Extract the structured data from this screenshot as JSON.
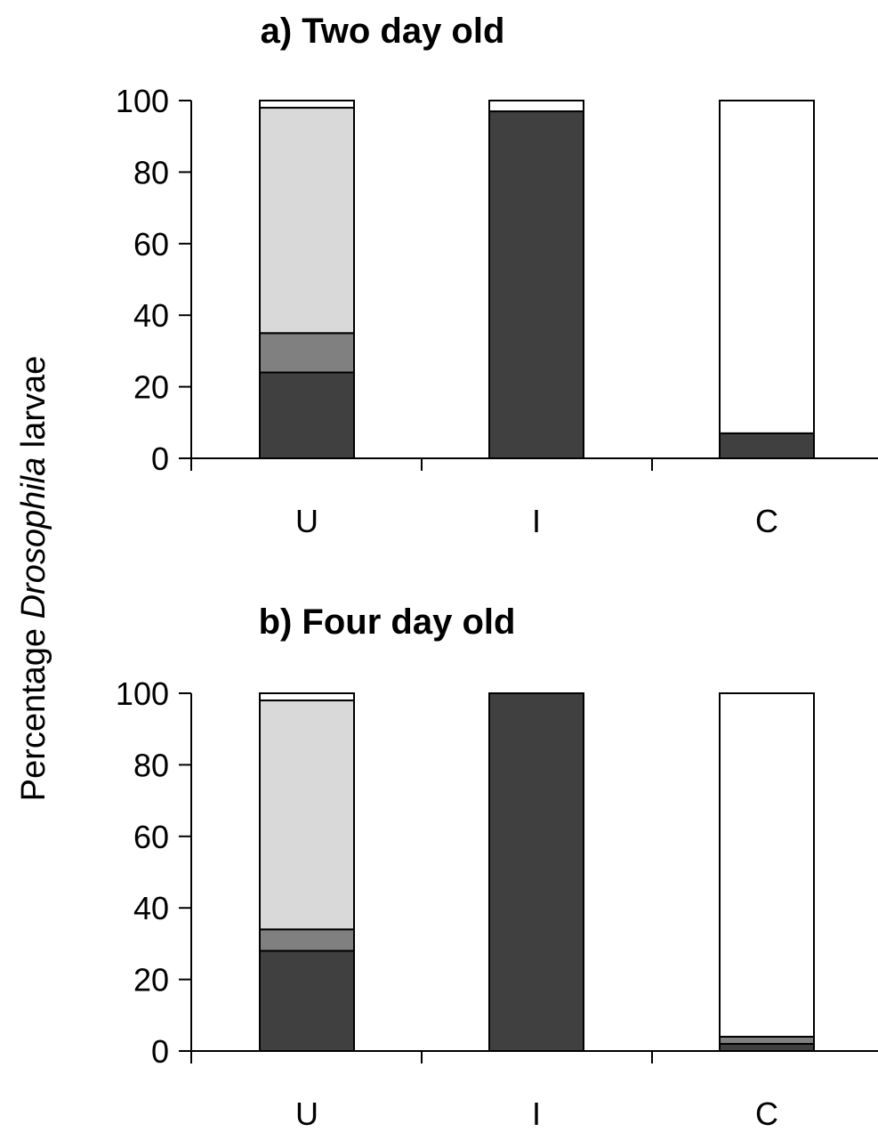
{
  "chart_data": [
    {
      "type": "bar",
      "stacked": true,
      "title": "a) Two day old",
      "ylim": [
        0,
        100
      ],
      "yticks": [
        0,
        20,
        40,
        60,
        80,
        100
      ],
      "categories": [
        "U",
        "I",
        "C"
      ],
      "series": [
        {
          "color": "#404040",
          "values": [
            24,
            97,
            7
          ]
        },
        {
          "color": "#808080",
          "values": [
            11,
            0,
            0
          ]
        },
        {
          "color": "#d9d9d9",
          "values": [
            63,
            0,
            0
          ]
        },
        {
          "color": "#ffffff",
          "values": [
            2,
            3,
            93
          ]
        }
      ]
    },
    {
      "type": "bar",
      "stacked": true,
      "title": "b) Four day old",
      "ylim": [
        0,
        100
      ],
      "yticks": [
        0,
        20,
        40,
        60,
        80,
        100
      ],
      "categories": [
        "U",
        "I",
        "C"
      ],
      "series": [
        {
          "color": "#404040",
          "values": [
            28,
            100,
            2
          ]
        },
        {
          "color": "#808080",
          "values": [
            6,
            0,
            2
          ]
        },
        {
          "color": "#d9d9d9",
          "values": [
            64,
            0,
            0
          ]
        },
        {
          "color": "#ffffff",
          "values": [
            2,
            0,
            96
          ]
        }
      ]
    }
  ],
  "ylabel": {
    "prefix": "Percentage ",
    "italic": "Drosophila",
    "suffix": " larvae"
  }
}
